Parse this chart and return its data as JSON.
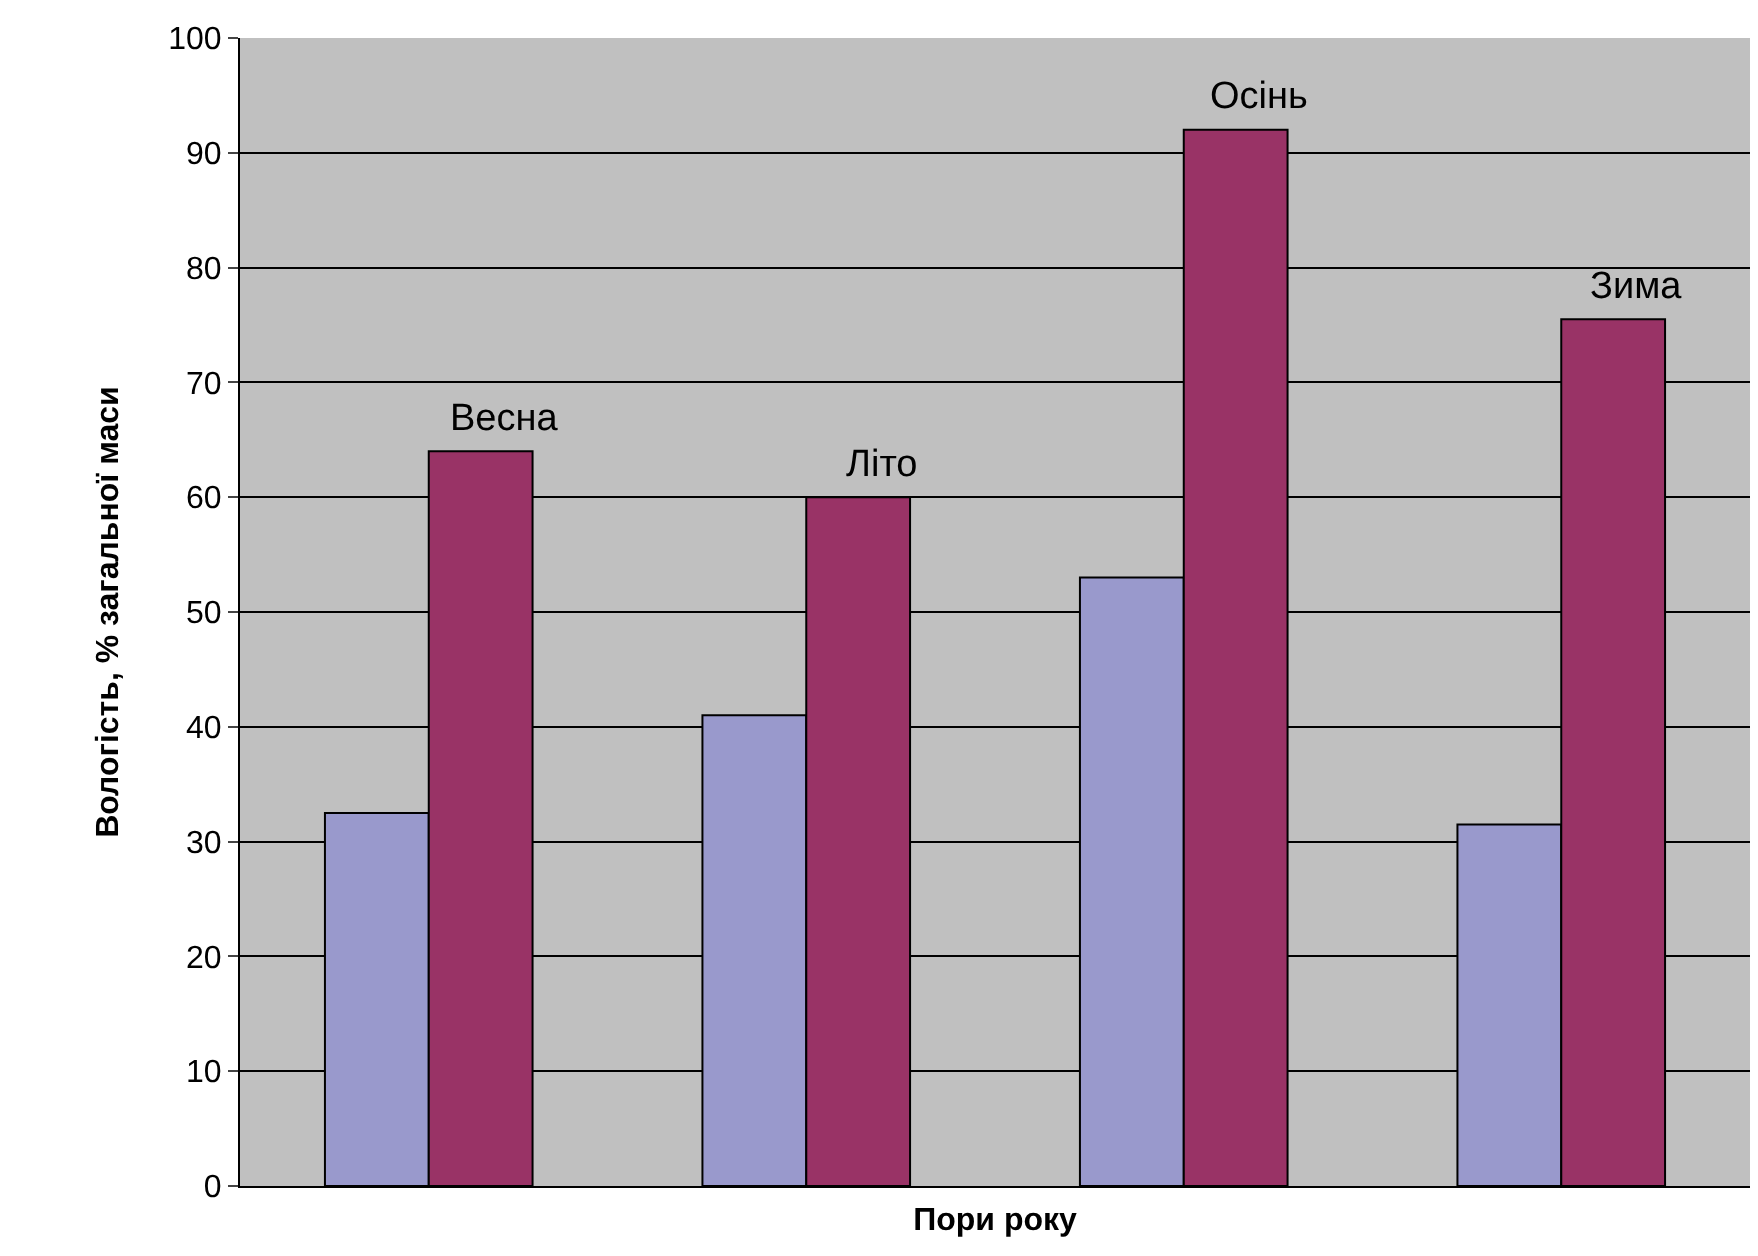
{
  "chart_data": {
    "type": "bar",
    "xlabel": "Пори року",
    "ylabel": "Вологість, % загальної маси",
    "categories": [
      null,
      null,
      null,
      null
    ],
    "series": [
      {
        "color": "#9999cc",
        "values": [
          32.5,
          41,
          53,
          31.5
        ]
      },
      {
        "color": "#993366",
        "values": [
          64,
          60,
          92,
          75.5
        ]
      }
    ],
    "annotations": [
      {
        "text": "Весна",
        "y": 64
      },
      {
        "text": "Літо",
        "y": 60
      },
      {
        "text": "Осінь",
        "y": 92
      },
      {
        "text": "Зима",
        "y": 75.5
      }
    ],
    "ylim": [
      0,
      100
    ],
    "yticks": [
      0,
      10,
      20,
      30,
      40,
      50,
      60,
      70,
      80,
      90,
      100
    ],
    "grid": "y"
  }
}
